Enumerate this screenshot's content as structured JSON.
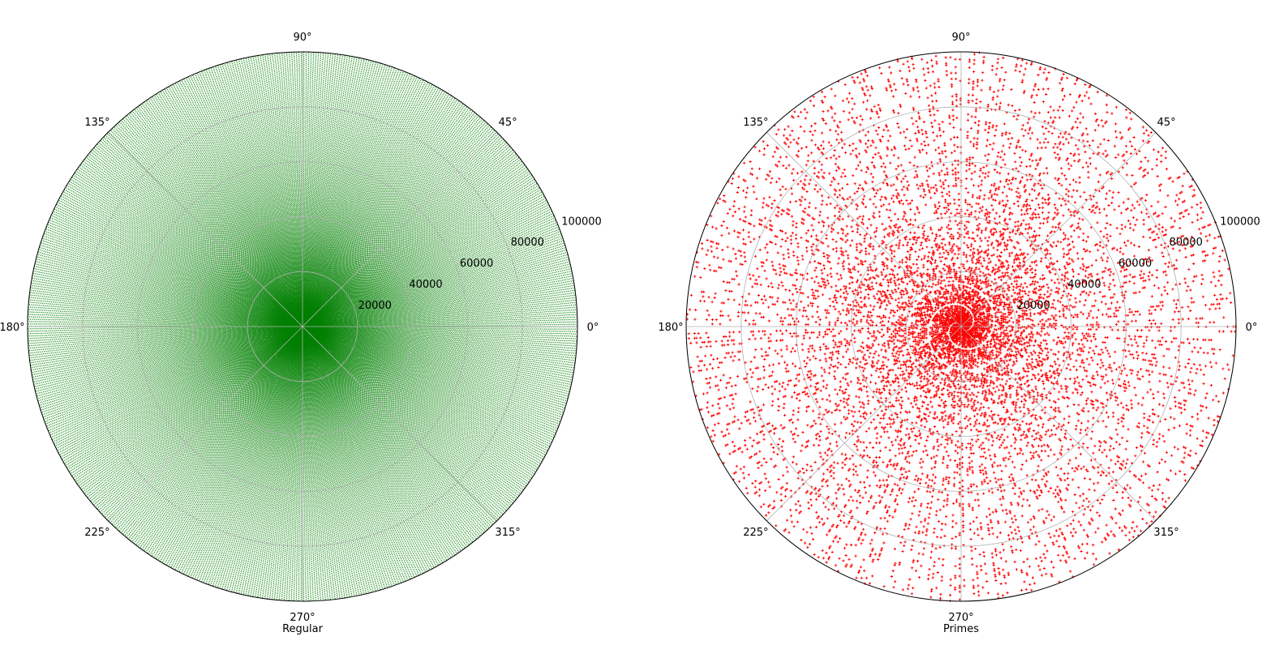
{
  "chart_data": [
    {
      "type": "scatter",
      "projection": "polar",
      "description_of_data": "points (r = n, theta = n radians) for every integer n",
      "r_min": 1,
      "r_max": 100000,
      "r_step": 1,
      "rlim": [
        0,
        100000
      ],
      "rticks": [
        20000,
        40000,
        60000,
        80000,
        100000
      ],
      "rtick_labels": [
        "20000",
        "40000",
        "60000",
        "80000",
        "100000"
      ],
      "theta_ticks_deg": [
        0,
        45,
        90,
        135,
        180,
        225,
        270,
        315
      ],
      "theta_tick_labels": [
        "0°",
        "45°",
        "90°",
        "135°",
        "180°",
        "225°",
        "270°",
        "315°"
      ],
      "xlabel": "Regular",
      "marker_color": "#008000",
      "grid": true
    },
    {
      "type": "scatter",
      "projection": "polar",
      "description_of_data": "points (r = p, theta = p radians) for every prime p",
      "r_min": 2,
      "r_max": 100000,
      "rlim": [
        0,
        100000
      ],
      "rticks": [
        20000,
        40000,
        60000,
        80000,
        100000
      ],
      "rtick_labels": [
        "20000",
        "40000",
        "60000",
        "80000",
        "100000"
      ],
      "theta_ticks_deg": [
        0,
        45,
        90,
        135,
        180,
        225,
        270,
        315
      ],
      "theta_tick_labels": [
        "0°",
        "45°",
        "90°",
        "135°",
        "180°",
        "225°",
        "270°",
        "315°"
      ],
      "xlabel": "Primes",
      "marker_color": "#ff0000",
      "grid": true
    }
  ]
}
